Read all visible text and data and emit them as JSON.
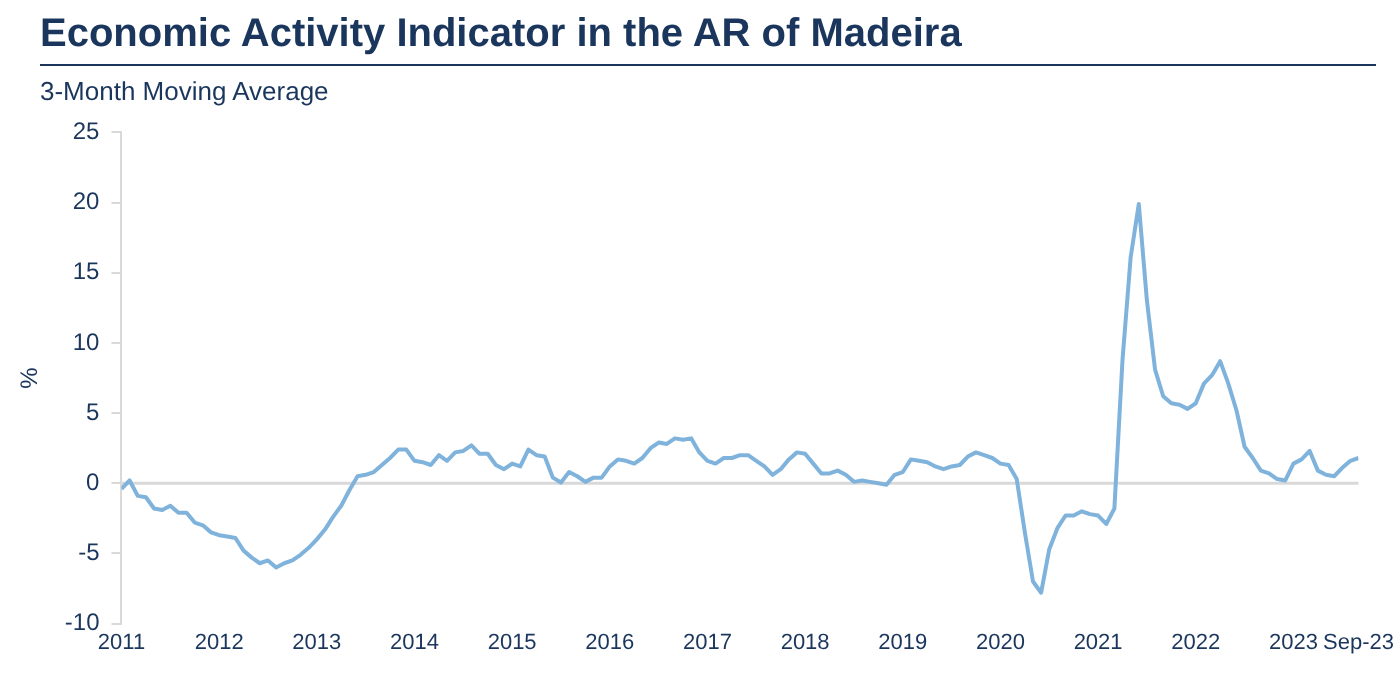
{
  "chart_data": {
    "type": "line",
    "title": "Economic Activity Indicator in the AR of Madeira",
    "subtitle": "3-Month Moving Average",
    "ylabel": "%",
    "x": [
      "2011-01",
      "2011-02",
      "2011-03",
      "2011-04",
      "2011-05",
      "2011-06",
      "2011-07",
      "2011-08",
      "2011-09",
      "2011-10",
      "2011-11",
      "2011-12",
      "2012-01",
      "2012-02",
      "2012-03",
      "2012-04",
      "2012-05",
      "2012-06",
      "2012-07",
      "2012-08",
      "2012-09",
      "2012-10",
      "2012-11",
      "2012-12",
      "2013-01",
      "2013-02",
      "2013-03",
      "2013-04",
      "2013-05",
      "2013-06",
      "2013-07",
      "2013-08",
      "2013-09",
      "2013-10",
      "2013-11",
      "2013-12",
      "2014-01",
      "2014-02",
      "2014-03",
      "2014-04",
      "2014-05",
      "2014-06",
      "2014-07",
      "2014-08",
      "2014-09",
      "2014-10",
      "2014-11",
      "2014-12",
      "2015-01",
      "2015-02",
      "2015-03",
      "2015-04",
      "2015-05",
      "2015-06",
      "2015-07",
      "2015-08",
      "2015-09",
      "2015-10",
      "2015-11",
      "2015-12",
      "2016-01",
      "2016-02",
      "2016-03",
      "2016-04",
      "2016-05",
      "2016-06",
      "2016-07",
      "2016-08",
      "2016-09",
      "2016-10",
      "2016-11",
      "2016-12",
      "2017-01",
      "2017-02",
      "2017-03",
      "2017-04",
      "2017-05",
      "2017-06",
      "2017-07",
      "2017-08",
      "2017-09",
      "2017-10",
      "2017-11",
      "2017-12",
      "2018-01",
      "2018-02",
      "2018-03",
      "2018-04",
      "2018-05",
      "2018-06",
      "2018-07",
      "2018-08",
      "2018-09",
      "2018-10",
      "2018-11",
      "2018-12",
      "2019-01",
      "2019-02",
      "2019-03",
      "2019-04",
      "2019-05",
      "2019-06",
      "2019-07",
      "2019-08",
      "2019-09",
      "2019-10",
      "2019-11",
      "2019-12",
      "2020-01",
      "2020-02",
      "2020-03",
      "2020-04",
      "2020-05",
      "2020-06",
      "2020-07",
      "2020-08",
      "2020-09",
      "2020-10",
      "2020-11",
      "2020-12",
      "2021-01",
      "2021-02",
      "2021-03",
      "2021-04",
      "2021-05",
      "2021-06",
      "2021-07",
      "2021-08",
      "2021-09",
      "2021-10",
      "2021-11",
      "2021-12",
      "2022-01",
      "2022-02",
      "2022-03",
      "2022-04",
      "2022-05",
      "2022-06",
      "2022-07",
      "2022-08",
      "2022-09",
      "2022-10",
      "2022-11",
      "2022-12",
      "2023-01",
      "2023-02",
      "2023-03",
      "2023-04",
      "2023-05",
      "2023-06",
      "2023-07",
      "2023-08",
      "2023-09"
    ],
    "series": [
      {
        "color": "#7fb3dc",
        "values": [
          -0.4,
          0.2,
          -0.9,
          -1.0,
          -1.8,
          -1.9,
          -1.6,
          -2.1,
          -2.1,
          -2.8,
          -3.0,
          -3.5,
          -3.7,
          -3.8,
          -3.9,
          -4.8,
          -5.3,
          -5.7,
          -5.5,
          -6.0,
          -5.7,
          -5.5,
          -5.1,
          -4.6,
          -4.0,
          -3.3,
          -2.4,
          -1.6,
          -0.5,
          0.5,
          0.6,
          0.8,
          1.3,
          1.8,
          2.4,
          2.4,
          1.6,
          1.5,
          1.3,
          2.0,
          1.6,
          2.2,
          2.3,
          2.7,
          2.1,
          2.1,
          1.3,
          1.0,
          1.4,
          1.2,
          2.4,
          2.0,
          1.9,
          0.4,
          0.05,
          0.8,
          0.5,
          0.1,
          0.4,
          0.4,
          1.2,
          1.7,
          1.6,
          1.4,
          1.8,
          2.5,
          2.9,
          2.8,
          3.2,
          3.1,
          3.2,
          2.2,
          1.6,
          1.4,
          1.8,
          1.8,
          2.0,
          2.0,
          1.6,
          1.2,
          0.6,
          1.0,
          1.7,
          2.2,
          2.1,
          1.4,
          0.7,
          0.7,
          0.9,
          0.6,
          0.1,
          0.2,
          0.1,
          0.0,
          -0.1,
          0.6,
          0.8,
          1.7,
          1.6,
          1.5,
          1.2,
          1.0,
          1.2,
          1.3,
          1.9,
          2.2,
          2.0,
          1.8,
          1.4,
          1.3,
          0.3,
          -3.5,
          -7.0,
          -7.8,
          -4.7,
          -3.2,
          -2.3,
          -2.3,
          -2.0,
          -2.2,
          -2.3,
          -2.9,
          -1.8,
          8.8,
          16.1,
          19.9,
          13.0,
          8.1,
          6.2,
          5.7,
          5.6,
          5.3,
          5.7,
          7.1,
          7.7,
          8.7,
          7.1,
          5.2,
          2.6,
          1.8,
          0.9,
          0.7,
          0.3,
          0.2,
          1.4,
          1.7,
          2.3,
          0.9,
          0.6,
          0.5,
          1.1,
          1.6,
          1.8
        ]
      }
    ],
    "xlim": [
      "2011-01",
      "2023-09"
    ],
    "xticks": [
      {
        "value": "2011",
        "label": "2011"
      },
      {
        "value": "2012",
        "label": "2012"
      },
      {
        "value": "2013",
        "label": "2013"
      },
      {
        "value": "2014",
        "label": "2014"
      },
      {
        "value": "2015",
        "label": "2015"
      },
      {
        "value": "2016",
        "label": "2016"
      },
      {
        "value": "2017",
        "label": "2017"
      },
      {
        "value": "2018",
        "label": "2018"
      },
      {
        "value": "2019",
        "label": "2019"
      },
      {
        "value": "2020",
        "label": "2020"
      },
      {
        "value": "2021",
        "label": "2021"
      },
      {
        "value": "2022",
        "label": "2022"
      },
      {
        "value": "2023",
        "label": "2023"
      },
      {
        "value": "2023-09",
        "label": "Sep-23"
      }
    ],
    "ylim": [
      -10,
      25
    ],
    "yticks": [
      -10,
      -5,
      0,
      5,
      10,
      15,
      20,
      25
    ],
    "ref_lines": [
      {
        "axis": "y",
        "value": 0,
        "color": "#d9d9d9"
      }
    ],
    "grid": false,
    "legend": false,
    "marker": "none",
    "line_style": "solid"
  }
}
